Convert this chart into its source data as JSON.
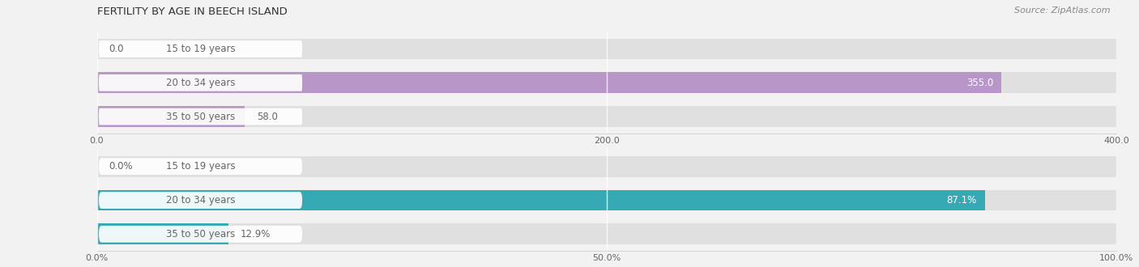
{
  "title": "Female Fertility by Age in Beech Island",
  "title_display": "FERTILITY BY AGE IN BEECH ISLAND",
  "source": "Source: ZipAtlas.com",
  "top_chart": {
    "categories": [
      "15 to 19 years",
      "20 to 34 years",
      "35 to 50 years"
    ],
    "values": [
      0.0,
      355.0,
      58.0
    ],
    "bar_color": "#b897c8",
    "xlim": [
      0,
      400
    ],
    "xticks": [
      0.0,
      200.0,
      400.0
    ],
    "bar_label_inside": [
      false,
      true,
      false
    ],
    "bar_labels": [
      "0.0",
      "355.0",
      "58.0"
    ]
  },
  "bottom_chart": {
    "categories": [
      "15 to 19 years",
      "20 to 34 years",
      "35 to 50 years"
    ],
    "values": [
      0.0,
      87.1,
      12.9
    ],
    "bar_color": "#35aab5",
    "xlim": [
      0,
      100
    ],
    "xticks": [
      0.0,
      50.0,
      100.0
    ],
    "xtick_labels": [
      "0.0%",
      "50.0%",
      "100.0%"
    ],
    "bar_label_inside": [
      false,
      true,
      false
    ],
    "bar_labels": [
      "0.0%",
      "87.1%",
      "12.9%"
    ]
  },
  "bg_color": "#f2f2f2",
  "bar_bg_color": "#e0e0e0",
  "label_pill_color": "#ffffff",
  "label_color": "#666666",
  "title_color": "#333333",
  "source_color": "#888888",
  "bar_height": 0.62,
  "bar_label_fontsize": 8.5,
  "cat_label_fontsize": 8.5,
  "axis_label_fontsize": 8,
  "value_label_color_inside": "#ffffff",
  "value_label_color_outside": "#666666"
}
